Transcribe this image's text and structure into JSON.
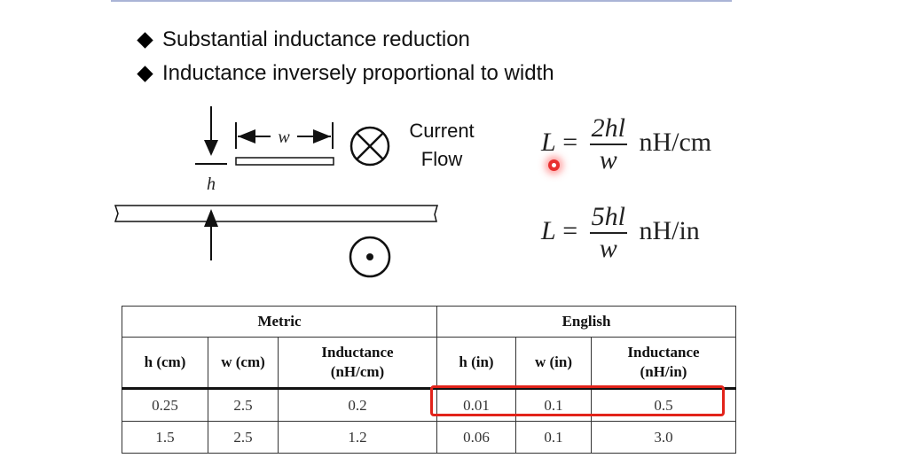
{
  "bullets": [
    "Substantial inductance reduction",
    "Inductance inversely proportional to width"
  ],
  "diagram": {
    "width_label": "w",
    "height_label": "h",
    "current_flow_line1": "Current",
    "current_flow_line2": "Flow"
  },
  "formulas": [
    {
      "lhs": "L",
      "eq": "=",
      "numerator": "2hl",
      "denominator": "w",
      "unit": "nH/cm"
    },
    {
      "lhs": "L",
      "eq": "=",
      "numerator": "5hl",
      "denominator": "w",
      "unit": "nH/in"
    }
  ],
  "table": {
    "groups": [
      "Metric",
      "English"
    ],
    "headers": [
      "h (cm)",
      "w (cm)",
      "Inductance (nH/cm)",
      "h (in)",
      "w (in)",
      "Inductance (nH/in)"
    ],
    "rows": [
      [
        "0.25",
        "2.5",
        "0.2",
        "0.01",
        "0.1",
        "0.5"
      ],
      [
        "1.5",
        "2.5",
        "1.2",
        "0.06",
        "0.1",
        "3.0"
      ]
    ]
  },
  "colors": {
    "highlight_box": "#e2231a",
    "laser_pointer": "#e83030"
  }
}
